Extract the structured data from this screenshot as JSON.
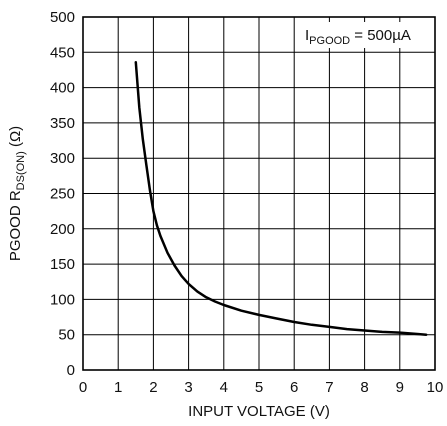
{
  "chart_data": {
    "type": "line",
    "xlabel": "INPUT VOLTAGE (V)",
    "ylabel_main": "PGOOD R",
    "ylabel_sub": "DS(ON)",
    "ylabel_unit": " (Ω)",
    "xlim": [
      0,
      10
    ],
    "ylim": [
      0,
      500
    ],
    "x_ticks": [
      0,
      1,
      2,
      3,
      4,
      5,
      6,
      7,
      8,
      9,
      10
    ],
    "y_ticks": [
      0,
      50,
      100,
      150,
      200,
      250,
      300,
      350,
      400,
      450,
      500
    ],
    "grid": true,
    "annotation": {
      "main": "I",
      "sub": "PGOOD",
      "rest": " = 500µA"
    },
    "series": [
      {
        "x": [
          1.5,
          1.6,
          1.7,
          1.8,
          1.9,
          2.0,
          2.1,
          2.2,
          2.4,
          2.6,
          2.8,
          3.0,
          3.25,
          3.5,
          3.75,
          4.0,
          4.5,
          5.0,
          5.5,
          6.0,
          6.5,
          7.0,
          7.5,
          8.0,
          8.5,
          9.0,
          9.5,
          9.75
        ],
        "y": [
          436,
          372,
          327,
          290,
          255,
          225,
          205,
          190,
          166,
          148,
          133,
          122,
          111,
          103,
          97,
          92,
          84,
          78,
          73,
          68,
          64,
          61,
          58,
          56,
          54,
          53,
          51,
          50
        ]
      }
    ],
    "colors": {
      "line": "#000000",
      "grid": "#000000",
      "frame": "#000000"
    }
  }
}
